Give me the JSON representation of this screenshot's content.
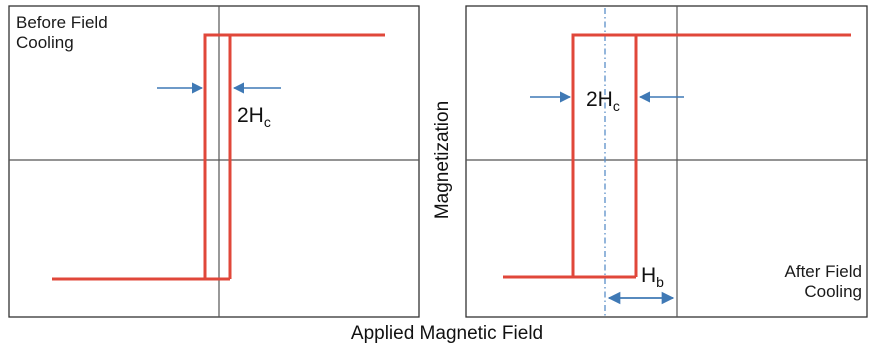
{
  "diagram": {
    "x_axis_label": "Applied Magnetic Field",
    "y_axis_label": "Magnetization",
    "panels": [
      {
        "caption_line1": "Before Field",
        "caption_line2": "Cooling",
        "coercivity_main": "2H",
        "coercivity_sub": "c"
      },
      {
        "caption_line1": "After Field",
        "caption_line2": "Cooling",
        "coercivity_main": "2H",
        "coercivity_sub": "c",
        "bias_main": "H",
        "bias_sub": "b"
      }
    ]
  },
  "colors": {
    "loop": "#e0473a",
    "arrow": "#3f79b5",
    "axis": "#555555",
    "frame": "#333333"
  },
  "icons": {
    "left_pointing_arrow": "arrow-right-icon",
    "right_pointing_arrow": "arrow-left-icon",
    "double_arrow": "double-arrow-icon"
  }
}
